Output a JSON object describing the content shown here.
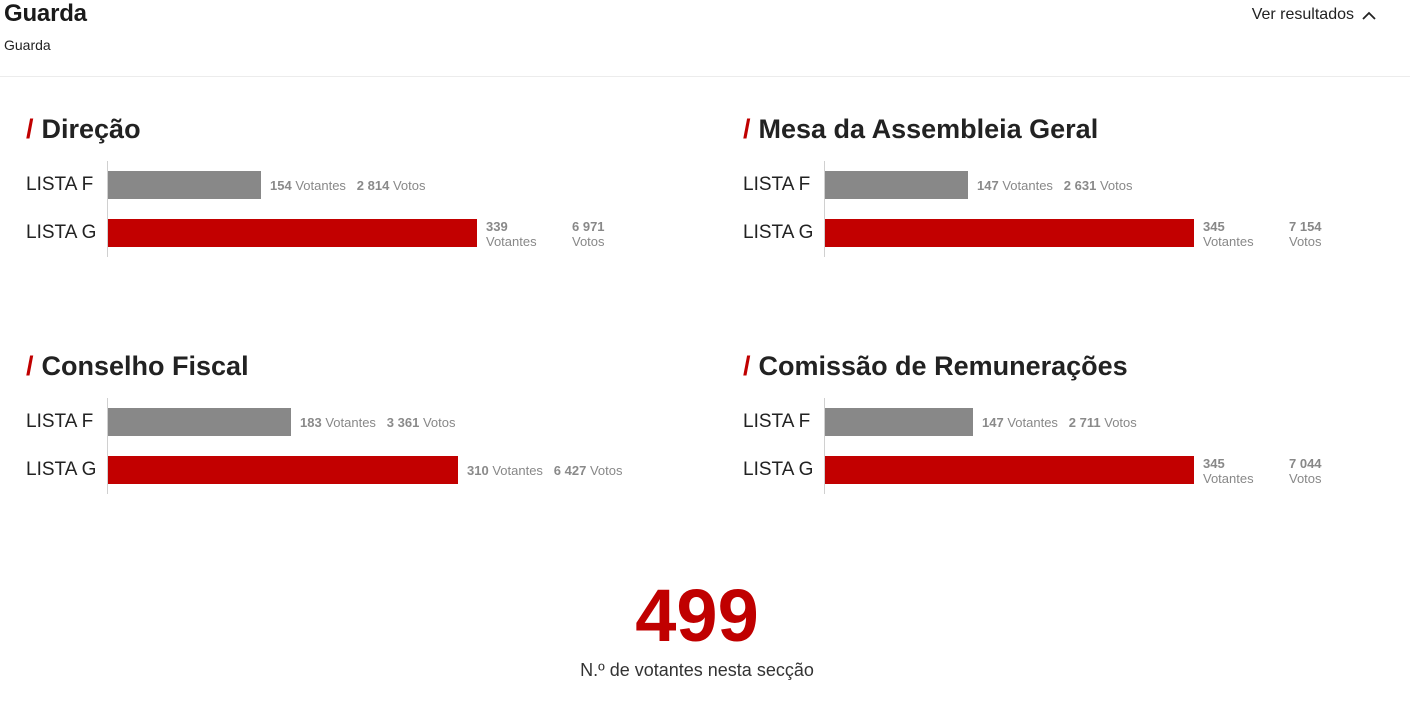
{
  "header": {
    "title": "Guarda",
    "subtitle": "Guarda",
    "toggle_label": "Ver resultados",
    "toggle_icon": "chevron-up-icon"
  },
  "colors": {
    "accent": "#c00000",
    "bar_f": "#888888",
    "bar_g": "#c20000"
  },
  "sections": [
    {
      "title": "Direção",
      "rows": [
        {
          "label": "LISTA F",
          "votantes": "154",
          "votantes_label": "Votantes",
          "votos": "2 814",
          "votos_label": "Votos"
        },
        {
          "label": "LISTA G",
          "votantes": "339",
          "votantes_label": "Votantes",
          "votos": "6 971",
          "votos_label": "Votos"
        }
      ]
    },
    {
      "title": "Mesa da Assembleia Geral",
      "rows": [
        {
          "label": "LISTA F",
          "votantes": "147",
          "votantes_label": "Votantes",
          "votos": "2 631",
          "votos_label": "Votos"
        },
        {
          "label": "LISTA G",
          "votantes": "345",
          "votantes_label": "Votantes",
          "votos": "7 154",
          "votos_label": "Votos"
        }
      ]
    },
    {
      "title": "Conselho Fiscal",
      "rows": [
        {
          "label": "LISTA F",
          "votantes": "183",
          "votantes_label": "Votantes",
          "votos": "3 361",
          "votos_label": "Votos"
        },
        {
          "label": "LISTA G",
          "votantes": "310",
          "votantes_label": "Votantes",
          "votos": "6 427",
          "votos_label": "Votos"
        }
      ]
    },
    {
      "title": "Comissão de Remunerações",
      "rows": [
        {
          "label": "LISTA F",
          "votantes": "147",
          "votantes_label": "Votantes",
          "votos": "2 711",
          "votos_label": "Votos"
        },
        {
          "label": "LISTA G",
          "votantes": "345",
          "votantes_label": "Votantes",
          "votos": "7 044",
          "votos_label": "Votos"
        }
      ]
    }
  ],
  "total": {
    "number": "499",
    "label": "N.º de votantes nesta secção"
  }
}
